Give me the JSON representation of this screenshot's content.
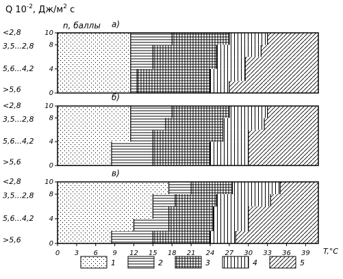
{
  "chart_data": {
    "type": "zones",
    "header": [
      "Q 10",
      "-2",
      ", Дж/м",
      "2",
      " с"
    ],
    "n_label": "n, баллы",
    "q_labels": [
      "<2,8",
      "3,5...2,8",
      "5,6...4,2",
      ">5,6"
    ],
    "x_label": "T,°C",
    "xlim": [
      0,
      41
    ],
    "ylim": [
      0,
      10
    ],
    "xticks": [
      0,
      3,
      6,
      9,
      12,
      15,
      18,
      21,
      24,
      27,
      30,
      33,
      36,
      39
    ],
    "yticks": [
      0,
      4,
      8,
      10
    ],
    "legend": [
      "1",
      "2",
      "3",
      "4",
      "5"
    ],
    "panels": [
      {
        "label": "а)",
        "rows": [
          {
            "n": [
              0,
              2
            ],
            "T": [
              11.5,
              12.5,
              24,
              27
            ]
          },
          {
            "n": [
              2,
              4
            ],
            "T": [
              11.5,
              12.5,
              24,
              29.5
            ]
          },
          {
            "n": [
              4,
              6
            ],
            "T": [
              11.5,
              15,
              25,
              29.5
            ]
          },
          {
            "n": [
              6,
              8
            ],
            "T": [
              11.5,
              15,
              25,
              32
            ]
          },
          {
            "n": [
              8,
              10
            ],
            "T": [
              11.5,
              18,
              27,
              33
            ]
          }
        ]
      },
      {
        "label": "б)",
        "rows": [
          {
            "n": [
              0,
              2
            ],
            "T": [
              8.5,
              15,
              24,
              30
            ]
          },
          {
            "n": [
              2,
              4
            ],
            "T": [
              8.5,
              15,
              24,
              30
            ]
          },
          {
            "n": [
              4,
              6
            ],
            "T": [
              11.5,
              15,
              26,
              30
            ]
          },
          {
            "n": [
              6,
              8
            ],
            "T": [
              11.5,
              17,
              26,
              32.5
            ]
          },
          {
            "n": [
              8,
              10
            ],
            "T": [
              11.5,
              18,
              27,
              33
            ]
          }
        ]
      },
      {
        "label": "в)",
        "rows": [
          {
            "n": [
              0,
              2
            ],
            "T": [
              8.5,
              15,
              24,
              28
            ]
          },
          {
            "n": [
              2,
              4
            ],
            "T": [
              12,
              17.5,
              24.5,
              30
            ]
          },
          {
            "n": [
              4,
              6
            ],
            "T": [
              15,
              17.5,
              24.5,
              30
            ]
          },
          {
            "n": [
              6,
              8
            ],
            "T": [
              15,
              18.5,
              25,
              33.5
            ]
          },
          {
            "n": [
              8,
              10
            ],
            "T": [
              17.5,
              21,
              27.5,
              35
            ]
          }
        ]
      }
    ]
  }
}
